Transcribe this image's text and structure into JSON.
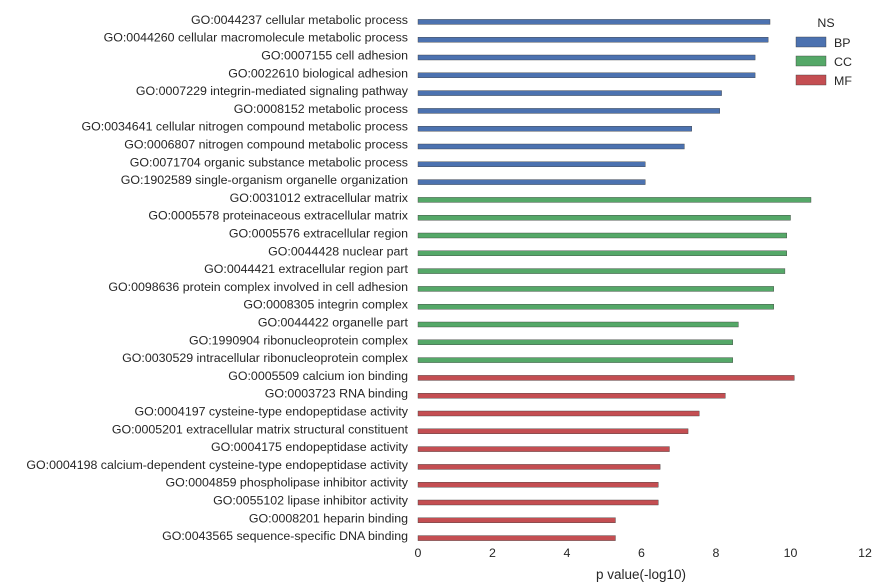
{
  "chart_data": {
    "type": "bar",
    "orientation": "horizontal",
    "xlabel": "p value(-log10)",
    "ylabel": "",
    "xlim": [
      0,
      12
    ],
    "xticks": [
      0,
      2,
      4,
      6,
      8,
      10,
      12
    ],
    "grid": false,
    "legend": {
      "title": "NS",
      "placement": "top-right"
    },
    "series": [
      {
        "name": "BP",
        "color": "#4c72b0"
      },
      {
        "name": "CC",
        "color": "#55a868"
      },
      {
        "name": "MF",
        "color": "#c44e52"
      }
    ],
    "categories": [
      {
        "label": "GO:0044237 cellular metabolic process",
        "group": "BP",
        "value": 9.45
      },
      {
        "label": "GO:0044260 cellular macromolecule metabolic process",
        "group": "BP",
        "value": 9.4
      },
      {
        "label": "GO:0007155 cell adhesion",
        "group": "BP",
        "value": 9.05
      },
      {
        "label": "GO:0022610 biological adhesion",
        "group": "BP",
        "value": 9.05
      },
      {
        "label": "GO:0007229 integrin-mediated signaling pathway",
        "group": "BP",
        "value": 8.15
      },
      {
        "label": "GO:0008152 metabolic process",
        "group": "BP",
        "value": 8.1
      },
      {
        "label": "GO:0034641 cellular nitrogen compound metabolic process",
        "group": "BP",
        "value": 7.35
      },
      {
        "label": "GO:0006807 nitrogen compound metabolic process",
        "group": "BP",
        "value": 7.15
      },
      {
        "label": "GO:0071704 organic substance metabolic process",
        "group": "BP",
        "value": 6.1
      },
      {
        "label": "GO:1902589 single-organism organelle organization",
        "group": "BP",
        "value": 6.1
      },
      {
        "label": "GO:0031012 extracellular matrix",
        "group": "CC",
        "value": 10.55
      },
      {
        "label": "GO:0005578 proteinaceous extracellular matrix",
        "group": "CC",
        "value": 10.0
      },
      {
        "label": "GO:0005576 extracellular region",
        "group": "CC",
        "value": 9.9
      },
      {
        "label": "GO:0044428 nuclear part",
        "group": "CC",
        "value": 9.9
      },
      {
        "label": "GO:0044421 extracellular region part",
        "group": "CC",
        "value": 9.85
      },
      {
        "label": "GO:0098636 protein complex involved in cell adhesion",
        "group": "CC",
        "value": 9.55
      },
      {
        "label": "GO:0008305 integrin complex",
        "group": "CC",
        "value": 9.55
      },
      {
        "label": "GO:0044422 organelle part",
        "group": "CC",
        "value": 8.6
      },
      {
        "label": "GO:1990904 ribonucleoprotein complex",
        "group": "CC",
        "value": 8.45
      },
      {
        "label": "GO:0030529 intracellular ribonucleoprotein complex",
        "group": "CC",
        "value": 8.45
      },
      {
        "label": "GO:0005509 calcium ion binding",
        "group": "MF",
        "value": 10.1
      },
      {
        "label": "GO:0003723 RNA binding",
        "group": "MF",
        "value": 8.25
      },
      {
        "label": "GO:0004197 cysteine-type endopeptidase activity",
        "group": "MF",
        "value": 7.55
      },
      {
        "label": "GO:0005201 extracellular matrix structural constituent",
        "group": "MF",
        "value": 7.25
      },
      {
        "label": "GO:0004175 endopeptidase activity",
        "group": "MF",
        "value": 6.75
      },
      {
        "label": "GO:0004198 calcium-dependent cysteine-type endopeptidase activity",
        "group": "MF",
        "value": 6.5
      },
      {
        "label": "GO:0004859 phospholipase inhibitor activity",
        "group": "MF",
        "value": 6.45
      },
      {
        "label": "GO:0055102 lipase inhibitor activity",
        "group": "MF",
        "value": 6.45
      },
      {
        "label": "GO:0008201 heparin binding",
        "group": "MF",
        "value": 5.3
      },
      {
        "label": "GO:0043565 sequence-specific DNA binding",
        "group": "MF",
        "value": 5.3
      }
    ]
  }
}
